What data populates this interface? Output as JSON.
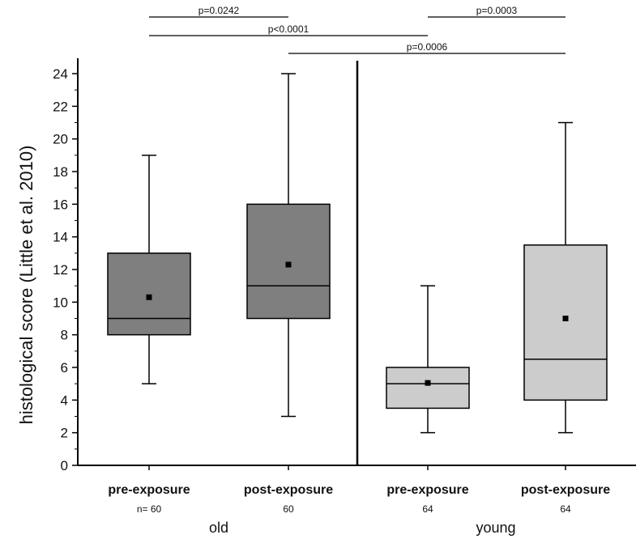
{
  "chart_data": {
    "type": "box",
    "ylabel": "histological score (Little et al. 2010)",
    "ylim": [
      0,
      25
    ],
    "yticks": [
      0,
      2,
      4,
      6,
      8,
      10,
      12,
      14,
      16,
      18,
      20,
      22,
      24
    ],
    "grid": false,
    "colors": {
      "old": "#7f7f7f",
      "young": "#cccccc",
      "mean_marker": "#000000",
      "line": "#000000"
    },
    "groups": [
      {
        "label": "old",
        "categories": [
          0,
          1
        ]
      },
      {
        "label": "young",
        "categories": [
          2,
          3
        ]
      }
    ],
    "categories": [
      {
        "label": "pre-exposure",
        "n_label": "n= 60",
        "group": "old",
        "min": 5,
        "q1": 8,
        "median": 9,
        "q3": 13,
        "max": 19,
        "mean": 10.3
      },
      {
        "label": "post-exposure",
        "n_label": "60",
        "group": "old",
        "min": 3,
        "q1": 9,
        "median": 11,
        "q3": 16,
        "max": 24,
        "mean": 12.3
      },
      {
        "label": "pre-exposure",
        "n_label": "64",
        "group": "young",
        "min": 2,
        "q1": 3.5,
        "median": 5,
        "q3": 6,
        "max": 11,
        "mean": 5.05
      },
      {
        "label": "post-exposure",
        "n_label": "64",
        "group": "young",
        "min": 2,
        "q1": 4,
        "median": 6.5,
        "q3": 13.5,
        "max": 21,
        "mean": 9.0
      }
    ],
    "comparisons": [
      {
        "from": 0,
        "to": 1,
        "label": "p=0.0242",
        "level": 0
      },
      {
        "from": 2,
        "to": 3,
        "label": "p=0.0003",
        "level": 0
      },
      {
        "from": 0,
        "to": 2,
        "label": "p<0.0001",
        "level": 1
      },
      {
        "from": 1,
        "to": 3,
        "label": "p=0.0006",
        "level": 2
      }
    ]
  }
}
